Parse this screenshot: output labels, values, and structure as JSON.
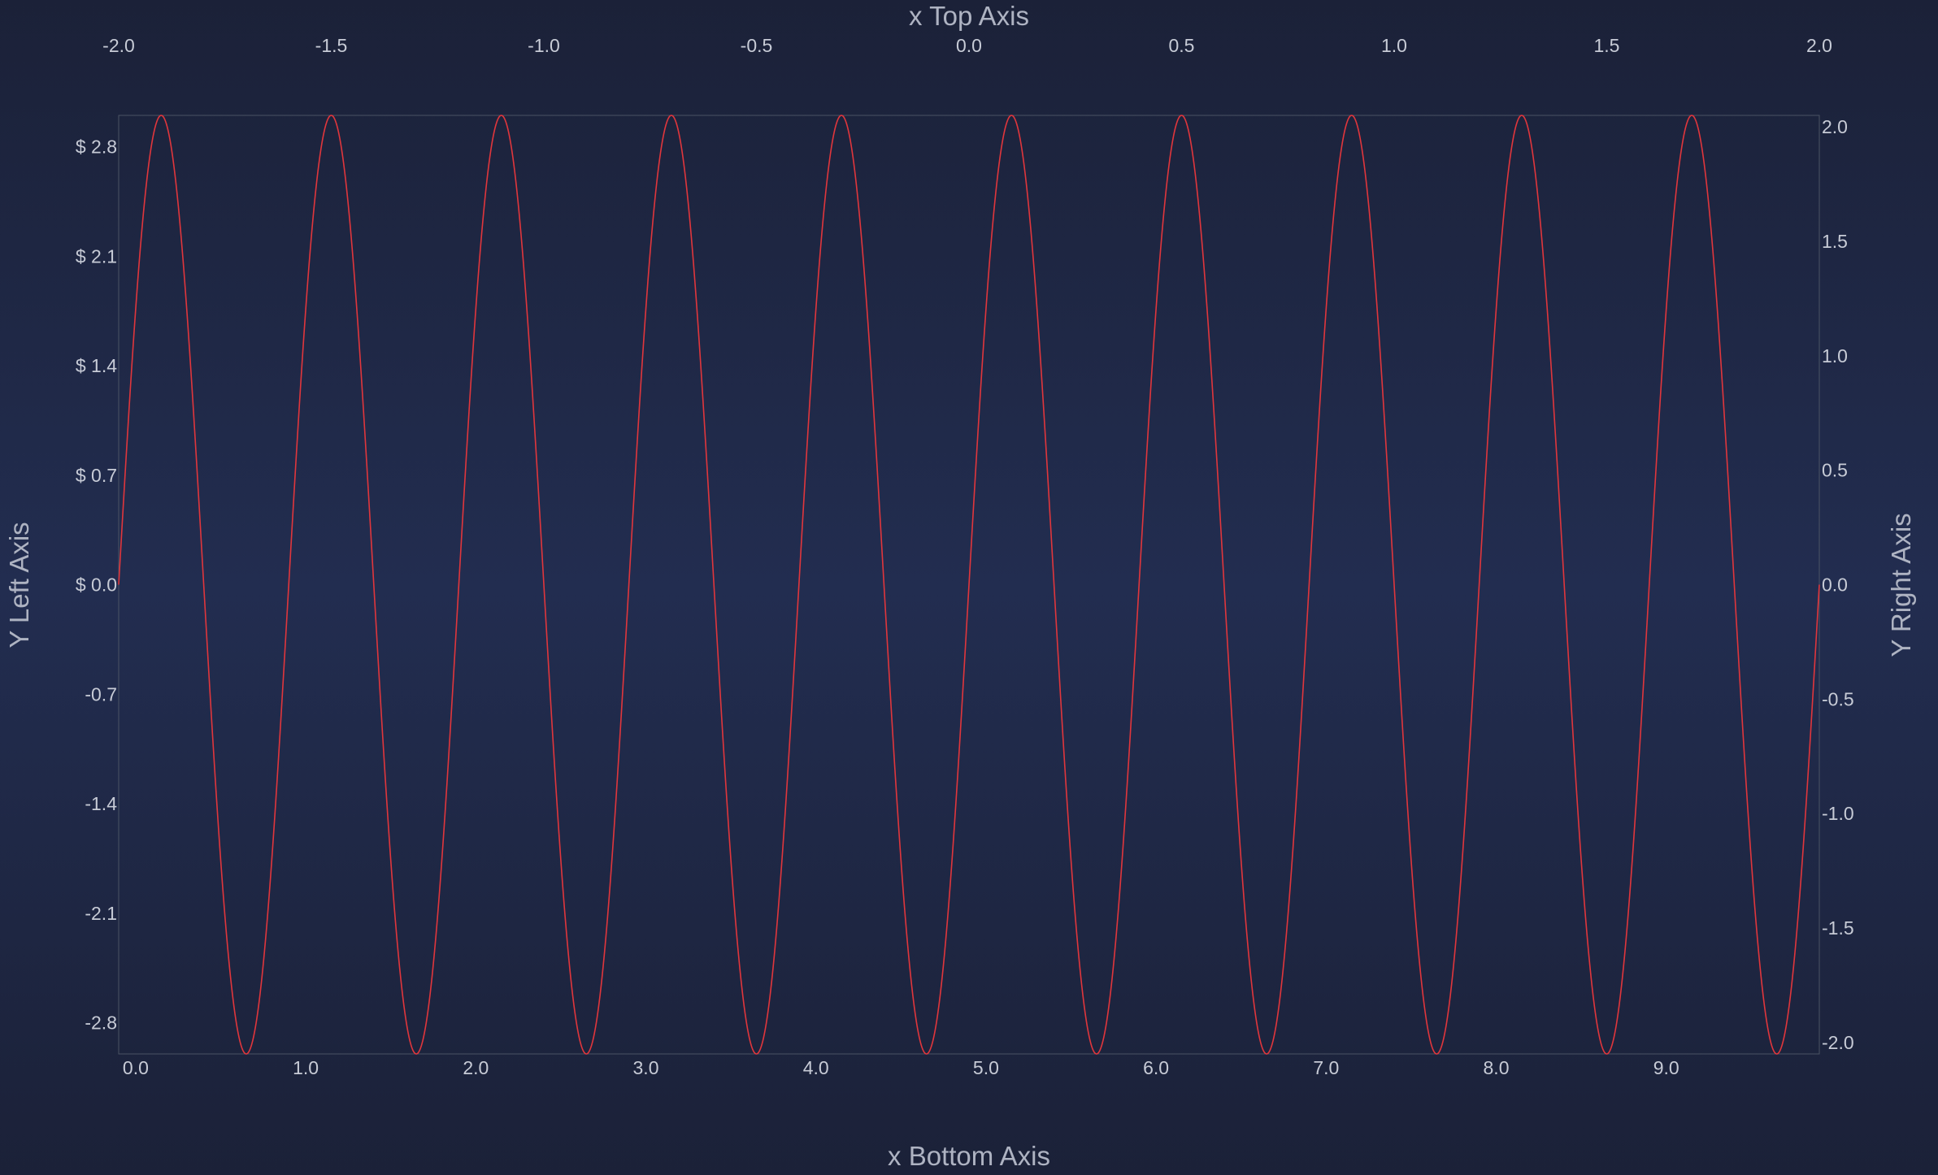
{
  "chart_data": {
    "type": "line",
    "title": "",
    "axes": {
      "top": {
        "label": "x Top Axis",
        "range": [
          -2.0,
          2.0
        ],
        "ticks": [
          "-2.0",
          "-1.5",
          "-1.0",
          "-0.5",
          "0.0",
          "0.5",
          "1.0",
          "1.5",
          "2.0"
        ],
        "tick_values": [
          -2.0,
          -1.5,
          -1.0,
          -0.5,
          0.0,
          0.5,
          1.0,
          1.5,
          2.0
        ]
      },
      "bottom": {
        "label": "x Bottom Axis",
        "range": [
          -0.1,
          9.9
        ],
        "ticks": [
          "0.0",
          "1.0",
          "2.0",
          "3.0",
          "4.0",
          "5.0",
          "6.0",
          "7.0",
          "8.0",
          "9.0"
        ],
        "tick_values": [
          0,
          1,
          2,
          3,
          4,
          5,
          6,
          7,
          8,
          9
        ]
      },
      "left": {
        "label": "Y Left Axis",
        "range": [
          -3.0,
          3.0
        ],
        "ticks": [
          "$ 2.8",
          "$ 2.1",
          "$ 1.4",
          "$ 0.7",
          "$ 0.0",
          "-0.7",
          "-1.4",
          "-2.1",
          "-2.8"
        ],
        "tick_values": [
          2.8,
          2.1,
          1.4,
          0.7,
          0.0,
          -0.7,
          -1.4,
          -2.1,
          -2.8
        ]
      },
      "right": {
        "label": "Y Right Axis",
        "range": [
          -2.05,
          2.05
        ],
        "ticks": [
          "2.0",
          "1.5",
          "1.0",
          "0.5",
          "0.0",
          "-0.5",
          "-1.0",
          "-1.5",
          "-2.0"
        ],
        "tick_values": [
          2.0,
          1.5,
          1.0,
          0.5,
          0.0,
          -0.5,
          -1.0,
          -1.5,
          -2.0
        ]
      }
    },
    "series": [
      {
        "x_axis": "bottom",
        "y_axis": "left",
        "color": "#e0363c",
        "function": "sine",
        "amplitude": 3.0,
        "period": 1.0,
        "phase_zero_at_x": -0.1,
        "x_range": [
          -0.1,
          9.9
        ]
      }
    ],
    "grid": false,
    "legend": "none"
  },
  "colors": {
    "background_edge": "#1b2138",
    "background_center": "#222d50",
    "line": "#e0363c",
    "tick_text": "#c7cbd6",
    "axis_title": "#aeb3c2"
  }
}
